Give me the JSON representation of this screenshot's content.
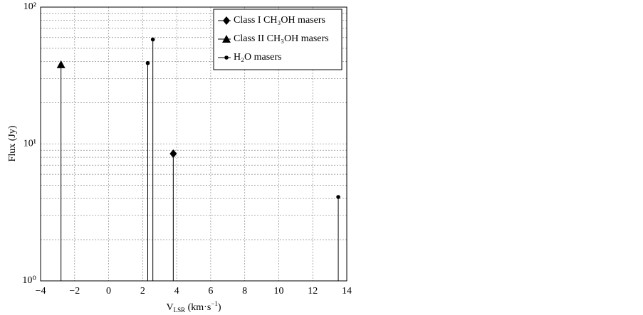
{
  "chart_data": {
    "type": "stem",
    "x_label": [
      "V",
      "LSR",
      " (km·s",
      "−1",
      ")"
    ],
    "y_label": "Flux (Jy)",
    "log_y": true,
    "grid": true,
    "minor_grid": true,
    "legend": "upper right",
    "xlim": [
      -4,
      14
    ],
    "xticks": [
      {
        "value": -4,
        "label": "−4"
      },
      {
        "value": -2,
        "label": "−2"
      },
      0,
      2,
      4,
      6,
      8,
      10,
      12,
      14
    ],
    "ylim": [
      1,
      100
    ],
    "yticks": [
      {
        "value": 1,
        "label": "10⁰"
      },
      {
        "value": 10,
        "label": "10¹"
      },
      {
        "value": 100,
        "label": "10²"
      }
    ],
    "series": [
      {
        "name": "Class I CH₃OH masers",
        "color": "#000000",
        "marker": "diamond",
        "x": [
          3.8
        ],
        "values": [
          8.5
        ]
      },
      {
        "name": "Class II CH₃OH masers",
        "color": "#000000",
        "marker": "triangle",
        "x": [
          -2.8
        ],
        "values": [
          38
        ]
      },
      {
        "name": "H₂O masers",
        "color": "#000000",
        "marker": "dot",
        "x": [
          2.3,
          2.6,
          13.5
        ],
        "values": [
          39,
          58,
          4.1
        ]
      }
    ]
  }
}
